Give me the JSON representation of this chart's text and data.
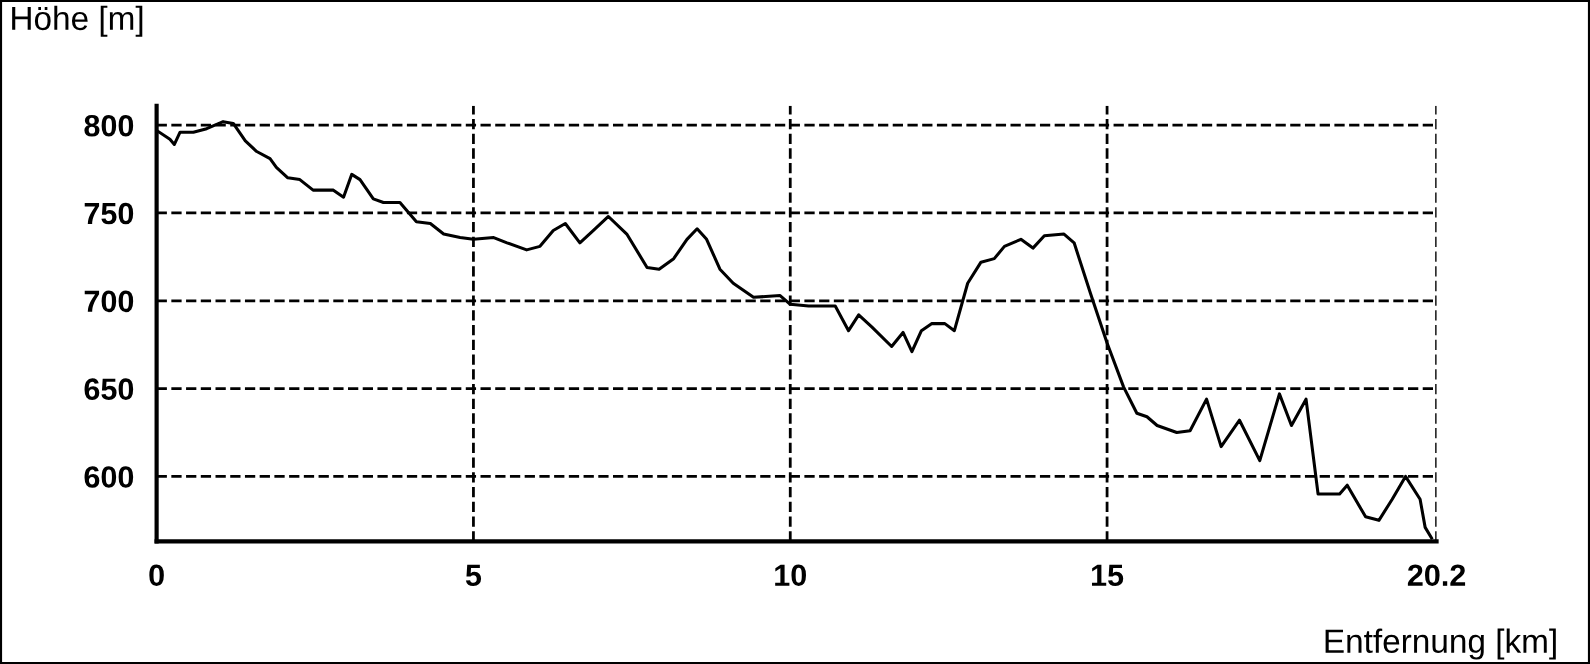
{
  "chart_data": {
    "type": "line",
    "xlabel": "Entfernung [km]",
    "ylabel": "Höhe [m]",
    "x": [
      0,
      0.21,
      0.28,
      0.37,
      0.58,
      0.79,
      1.05,
      1.21,
      1.4,
      1.58,
      1.79,
      1.89,
      2.07,
      2.26,
      2.47,
      2.79,
      2.95,
      3.08,
      3.21,
      3.42,
      3.58,
      3.84,
      4.1,
      4.32,
      4.53,
      4.79,
      5,
      5.32,
      5.53,
      5.84,
      6.05,
      6.26,
      6.45,
      6.68,
      6.89,
      7.13,
      7.42,
      7.74,
      7.93,
      8.16,
      8.37,
      8.53,
      8.68,
      8.89,
      9.1,
      9.42,
      9.84,
      10,
      10.29,
      10.71,
      10.92,
      11.08,
      11.29,
      11.6,
      11.78,
      11.92,
      12.07,
      12.23,
      12.44,
      12.59,
      12.8,
      13.01,
      13.22,
      13.38,
      13.64,
      13.83,
      14.01,
      14.32,
      14.48,
      14.74,
      15,
      15.26,
      15.47,
      15.63,
      15.79,
      16.1,
      16.31,
      16.57,
      16.8,
      17.09,
      17.41,
      17.72,
      17.91,
      18.14,
      18.33,
      18.67,
      18.79,
      19.08,
      19.29,
      19.5,
      19.71,
      19.94,
      20.02,
      20.12
    ],
    "series": [
      {
        "color": "#000000",
        "values": [
          797,
          792,
          789,
          796,
          796,
          798,
          802,
          801,
          791,
          785,
          781,
          776,
          770,
          769,
          763,
          763,
          759,
          772,
          769,
          758,
          756,
          756,
          745,
          744,
          738,
          736,
          735,
          736,
          733,
          729,
          731,
          740,
          744,
          733,
          740,
          748,
          738,
          719,
          718,
          724,
          735,
          741,
          735,
          718,
          710,
          702,
          703,
          698,
          697,
          697,
          683,
          692,
          685,
          674,
          682,
          671,
          683,
          687,
          687,
          683,
          710,
          722,
          724,
          731,
          735,
          730,
          737,
          738,
          733,
          704,
          676,
          651,
          636,
          634,
          629,
          625,
          626,
          644,
          617,
          632,
          609,
          647,
          629,
          644,
          590,
          590,
          595,
          577,
          575,
          587,
          600,
          587,
          571,
          565
        ]
      }
    ],
    "xlim": [
      0,
      20.2
    ],
    "xticks": [
      0,
      5,
      10,
      15,
      20.2
    ],
    "ylim": [
      563,
      811
    ],
    "yticks": [
      600,
      650,
      700,
      750,
      800
    ],
    "grid": true,
    "marker": "none"
  }
}
